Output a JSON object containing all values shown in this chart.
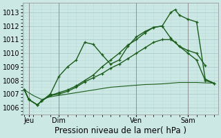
{
  "title": "Pression niveau de la mer( hPa )",
  "bg_color": "#cce8e4",
  "grid_major_color": "#aaccca",
  "grid_minor_color": "#bbdad8",
  "line_color": "#1a5c1a",
  "ylim": [
    1005.5,
    1013.7
  ],
  "yticks": [
    1006,
    1007,
    1008,
    1009,
    1010,
    1011,
    1012,
    1013
  ],
  "xlim": [
    -0.2,
    22.5
  ],
  "series": [
    {
      "x": [
        0,
        0.5,
        1.5,
        2,
        3,
        4,
        5,
        6,
        7,
        8,
        9,
        10,
        11,
        12,
        13,
        14,
        15,
        16,
        17,
        18,
        19,
        20,
        21
      ],
      "y": [
        1007.3,
        1006.6,
        1006.2,
        1006.5,
        1007.0,
        1008.3,
        1009.0,
        1009.5,
        1010.8,
        1010.65,
        1009.9,
        1009.2,
        1009.5,
        1010.5,
        1011.2,
        1011.6,
        1011.9,
        1012.0,
        1011.1,
        1010.5,
        1010.2,
        1010.0,
        1009.1
      ],
      "marker": "+",
      "lw": 1.0
    },
    {
      "x": [
        0,
        0.5,
        1.5,
        2,
        3,
        4,
        5,
        6,
        7,
        8,
        9,
        10,
        11,
        12,
        13,
        14,
        15,
        16,
        17,
        17.5,
        18,
        19,
        20,
        21,
        22
      ],
      "y": [
        1007.3,
        1006.6,
        1006.2,
        1006.5,
        1006.9,
        1007.1,
        1007.3,
        1007.6,
        1008.0,
        1008.4,
        1009.0,
        1009.5,
        1010.0,
        1010.6,
        1011.0,
        1011.5,
        1011.9,
        1012.0,
        1013.0,
        1013.2,
        1012.8,
        1012.5,
        1012.3,
        1008.1,
        1007.8
      ],
      "marker": "+",
      "lw": 1.0
    },
    {
      "x": [
        0,
        0.5,
        1.5,
        2,
        3,
        4,
        5,
        6,
        7,
        8,
        9,
        10,
        11,
        12,
        13,
        14,
        15,
        16,
        17,
        17.5,
        18,
        19,
        20,
        21,
        22
      ],
      "y": [
        1007.3,
        1006.6,
        1006.2,
        1006.5,
        1006.9,
        1007.0,
        1007.2,
        1007.5,
        1007.9,
        1008.2,
        1008.5,
        1008.9,
        1009.2,
        1009.6,
        1010.0,
        1010.4,
        1010.8,
        1011.0,
        1011.0,
        1010.8,
        1010.5,
        1010.0,
        1009.5,
        1008.0,
        1007.8
      ],
      "marker": "+",
      "lw": 1.0
    },
    {
      "x": [
        0,
        1,
        2,
        3,
        4,
        5,
        6,
        7,
        8,
        9,
        10,
        11,
        12,
        13,
        14,
        15,
        16,
        17,
        18,
        19,
        20,
        21,
        22
      ],
      "y": [
        1007.3,
        1006.9,
        1006.6,
        1006.8,
        1006.9,
        1007.0,
        1007.1,
        1007.2,
        1007.3,
        1007.4,
        1007.5,
        1007.55,
        1007.6,
        1007.65,
        1007.7,
        1007.72,
        1007.75,
        1007.8,
        1007.85,
        1007.85,
        1007.85,
        1007.82,
        1007.8
      ],
      "marker": null,
      "lw": 0.8
    }
  ],
  "xtick_positions": [
    0.5,
    4,
    13,
    19
  ],
  "xtick_labels": [
    "Jeu",
    "Dim",
    "Ven",
    "Sam"
  ],
  "vlines": [
    0.5,
    4,
    13,
    19
  ],
  "vline_color": "#888888",
  "title_fontsize": 8.5,
  "tick_fontsize": 7
}
